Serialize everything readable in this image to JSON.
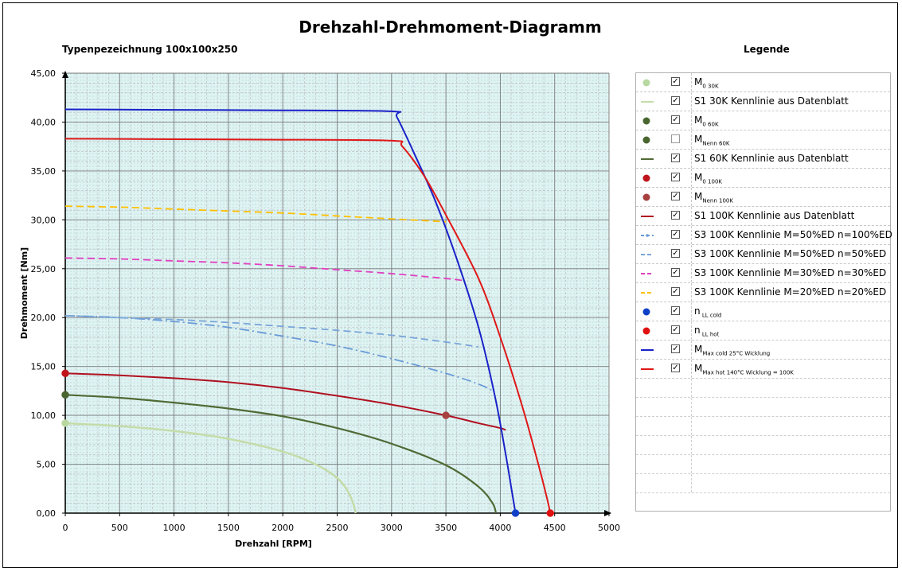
{
  "header": {
    "title": "Drehzahl-Drehmoment-Diagramm",
    "type_label": "Typenpezeichnung 100x100x250",
    "legend_title": "Legende"
  },
  "chart_data": {
    "type": "line",
    "title": "Drehzahl-Drehmoment-Diagramm",
    "xlabel": "Drehzahl [RPM]",
    "ylabel": "Drehmoment [Nm]",
    "xlim": [
      0,
      5000
    ],
    "ylim": [
      0,
      45
    ],
    "x_ticks": [
      "0",
      "500",
      "1000",
      "1500",
      "2000",
      "2500",
      "3000",
      "3500",
      "4000",
      "4500",
      "5000"
    ],
    "y_ticks": [
      "0,00",
      "5,00",
      "10,00",
      "15,00",
      "20,00",
      "25,00",
      "30,00",
      "35,00",
      "40,00",
      "45,00"
    ],
    "grid": true,
    "series": [
      {
        "name": "M0 30K",
        "kind": "point",
        "color": "#b8d8a0",
        "checked": true,
        "points": [
          [
            0,
            9.2
          ]
        ]
      },
      {
        "name": "S1 30K Kennlinie aus Datenblatt",
        "kind": "line",
        "color": "#c4dca8",
        "width": 2.5,
        "checked": true,
        "points": [
          [
            0,
            9.2
          ],
          [
            500,
            8.9
          ],
          [
            1000,
            8.4
          ],
          [
            1500,
            7.6
          ],
          [
            2000,
            6.3
          ],
          [
            2300,
            5.0
          ],
          [
            2500,
            3.6
          ],
          [
            2600,
            2.2
          ],
          [
            2650,
            0.9
          ],
          [
            2670,
            0.0
          ]
        ]
      },
      {
        "name": "M0 60K",
        "kind": "point",
        "color": "#4a6630",
        "checked": true,
        "points": [
          [
            0,
            12.1
          ]
        ]
      },
      {
        "name": "MNenn 60K",
        "kind": "point",
        "color": "#4a6630",
        "checked": false,
        "points": []
      },
      {
        "name": "S1 60K Kennlinie aus Datenblatt",
        "kind": "line",
        "color": "#4f6a34",
        "width": 2.2,
        "checked": true,
        "points": [
          [
            0,
            12.1
          ],
          [
            500,
            11.8
          ],
          [
            1000,
            11.3
          ],
          [
            1500,
            10.7
          ],
          [
            2000,
            9.9
          ],
          [
            2500,
            8.7
          ],
          [
            3000,
            7.1
          ],
          [
            3500,
            4.9
          ],
          [
            3800,
            2.7
          ],
          [
            3930,
            1.0
          ],
          [
            3960,
            0.0
          ]
        ]
      },
      {
        "name": "M0 100K",
        "kind": "point",
        "color": "#c0141c",
        "checked": true,
        "points": [
          [
            0,
            14.3
          ]
        ]
      },
      {
        "name": "MNenn 100K",
        "kind": "point",
        "color": "#a84040",
        "checked": true,
        "points": [
          [
            3500,
            10.0
          ]
        ]
      },
      {
        "name": "S1 100K Kennlinie aus Datenblatt",
        "kind": "line",
        "color": "#b01020",
        "width": 2.0,
        "checked": true,
        "points": [
          [
            0,
            14.3
          ],
          [
            500,
            14.1
          ],
          [
            1000,
            13.8
          ],
          [
            1500,
            13.4
          ],
          [
            2000,
            12.8
          ],
          [
            2500,
            12.0
          ],
          [
            3000,
            11.1
          ],
          [
            3500,
            10.0
          ],
          [
            3800,
            9.2
          ],
          [
            4000,
            8.7
          ],
          [
            4050,
            8.5
          ]
        ]
      },
      {
        "name": "S3 100K Kennlinie M=50%ED n=100%ED",
        "kind": "dashdot",
        "color": "#6a9bd8",
        "width": 1.8,
        "checked": true,
        "points": [
          [
            0,
            20.2
          ],
          [
            500,
            20.0
          ],
          [
            1000,
            19.6
          ],
          [
            1500,
            19.0
          ],
          [
            2000,
            18.1
          ],
          [
            2500,
            17.1
          ],
          [
            3000,
            15.8
          ],
          [
            3500,
            14.3
          ],
          [
            3800,
            13.2
          ],
          [
            3950,
            12.4
          ]
        ]
      },
      {
        "name": "S3 100K Kennlinie M=50%ED n=50%ED",
        "kind": "dashed",
        "color": "#7aa6da",
        "width": 1.8,
        "checked": true,
        "points": [
          [
            0,
            20.2
          ],
          [
            500,
            20.0
          ],
          [
            1000,
            19.8
          ],
          [
            1500,
            19.5
          ],
          [
            2000,
            19.1
          ],
          [
            2500,
            18.7
          ],
          [
            3000,
            18.2
          ],
          [
            3500,
            17.5
          ],
          [
            3800,
            17.0
          ]
        ]
      },
      {
        "name": "S3 100K Kennlinie M=30%ED n=30%ED",
        "kind": "dashed",
        "color": "#e040c0",
        "width": 1.8,
        "checked": true,
        "points": [
          [
            0,
            26.1
          ],
          [
            500,
            26.0
          ],
          [
            1000,
            25.8
          ],
          [
            1500,
            25.6
          ],
          [
            2000,
            25.3
          ],
          [
            2500,
            24.9
          ],
          [
            3000,
            24.5
          ],
          [
            3500,
            24.0
          ],
          [
            3650,
            23.8
          ]
        ]
      },
      {
        "name": "S3 100K Kennlinie M=20%ED n=20%ED",
        "kind": "dashed",
        "color": "#ffc000",
        "width": 1.8,
        "checked": true,
        "points": [
          [
            0,
            31.4
          ],
          [
            500,
            31.3
          ],
          [
            1000,
            31.1
          ],
          [
            1500,
            30.9
          ],
          [
            2000,
            30.7
          ],
          [
            2500,
            30.4
          ],
          [
            3000,
            30.1
          ],
          [
            3500,
            29.8
          ]
        ]
      },
      {
        "name": "n LL cold",
        "kind": "point",
        "color": "#1040c8",
        "checked": true,
        "points": [
          [
            4140,
            0.0
          ]
        ]
      },
      {
        "name": "n LL hot",
        "kind": "point",
        "color": "#e01010",
        "checked": true,
        "points": [
          [
            4460,
            0.0
          ]
        ]
      },
      {
        "name": "MMax cold 25°C Wicklung",
        "kind": "line",
        "color": "#1a22c8",
        "width": 2.0,
        "checked": true,
        "points": [
          [
            0,
            41.3
          ],
          [
            1000,
            41.25
          ],
          [
            2000,
            41.2
          ],
          [
            3000,
            41.1
          ],
          [
            3050,
            40.5
          ],
          [
            3200,
            37.0
          ],
          [
            3400,
            32.0
          ],
          [
            3600,
            26.0
          ],
          [
            3800,
            19.0
          ],
          [
            3950,
            12.0
          ],
          [
            4050,
            6.0
          ],
          [
            4110,
            2.0
          ],
          [
            4140,
            0.0
          ]
        ]
      },
      {
        "name": "MMax hot 140°C Wicklung = 100K",
        "kind": "line",
        "color": "#e01818",
        "width": 2.0,
        "checked": true,
        "points": [
          [
            0,
            38.3
          ],
          [
            1000,
            38.25
          ],
          [
            2000,
            38.2
          ],
          [
            3000,
            38.1
          ],
          [
            3100,
            37.5
          ],
          [
            3300,
            34.5
          ],
          [
            3500,
            30.5
          ],
          [
            3800,
            24.0
          ],
          [
            4000,
            18.0
          ],
          [
            4200,
            11.0
          ],
          [
            4350,
            5.0
          ],
          [
            4430,
            1.5
          ],
          [
            4460,
            0.0
          ]
        ]
      }
    ]
  },
  "legend": {
    "items": [
      {
        "main": "M",
        "sub": "0 30K",
        "checked": true,
        "symbol": "dot",
        "color": "#b8d8a0"
      },
      {
        "main": "S1 30K Kennlinie aus Datenblatt",
        "sub": "",
        "checked": true,
        "symbol": "line",
        "color": "#c4dca8"
      },
      {
        "main": "M",
        "sub": "0 60K",
        "checked": true,
        "symbol": "dot",
        "color": "#4a6630"
      },
      {
        "main": "M",
        "sub": "Nenn 60K",
        "checked": false,
        "symbol": "dot",
        "color": "#4a6630"
      },
      {
        "main": "S1 60K Kennlinie aus Datenblatt",
        "sub": "",
        "checked": true,
        "symbol": "line",
        "color": "#4f6a34"
      },
      {
        "main": "M",
        "sub": "0 100K",
        "checked": true,
        "symbol": "dot",
        "color": "#c0141c"
      },
      {
        "main": "M",
        "sub": "Nenn 100K",
        "checked": true,
        "symbol": "dot",
        "color": "#a84040"
      },
      {
        "main": "S1 100K Kennlinie aus Datenblatt",
        "sub": "",
        "checked": true,
        "symbol": "line",
        "color": "#b01020"
      },
      {
        "main": "S3 100K Kennlinie M=50%ED n=100%ED",
        "sub": "",
        "checked": true,
        "symbol": "dashdot",
        "color": "#6a9bd8"
      },
      {
        "main": "S3 100K Kennlinie M=50%ED n=50%ED",
        "sub": "",
        "checked": true,
        "symbol": "dashed",
        "color": "#7aa6da"
      },
      {
        "main": "S3 100K Kennlinie M=30%ED n=30%ED",
        "sub": "",
        "checked": true,
        "symbol": "dashed",
        "color": "#e040c0"
      },
      {
        "main": "S3 100K Kennlinie M=20%ED n=20%ED",
        "sub": "",
        "checked": true,
        "symbol": "dashed",
        "color": "#ffc000"
      },
      {
        "main": "n",
        "sub": " LL cold",
        "checked": true,
        "symbol": "dot",
        "color": "#1040c8"
      },
      {
        "main": "n",
        "sub": " LL hot",
        "checked": true,
        "symbol": "dot",
        "color": "#e01010"
      },
      {
        "main": "M",
        "sub": "Max cold 25°C Wicklung",
        "checked": true,
        "symbol": "line",
        "color": "#1a22c8"
      },
      {
        "main": "M",
        "sub": "Max hot 140°C Wicklung = 100K",
        "checked": true,
        "symbol": "line",
        "color": "#e01818"
      }
    ],
    "check_mark": "✓"
  }
}
